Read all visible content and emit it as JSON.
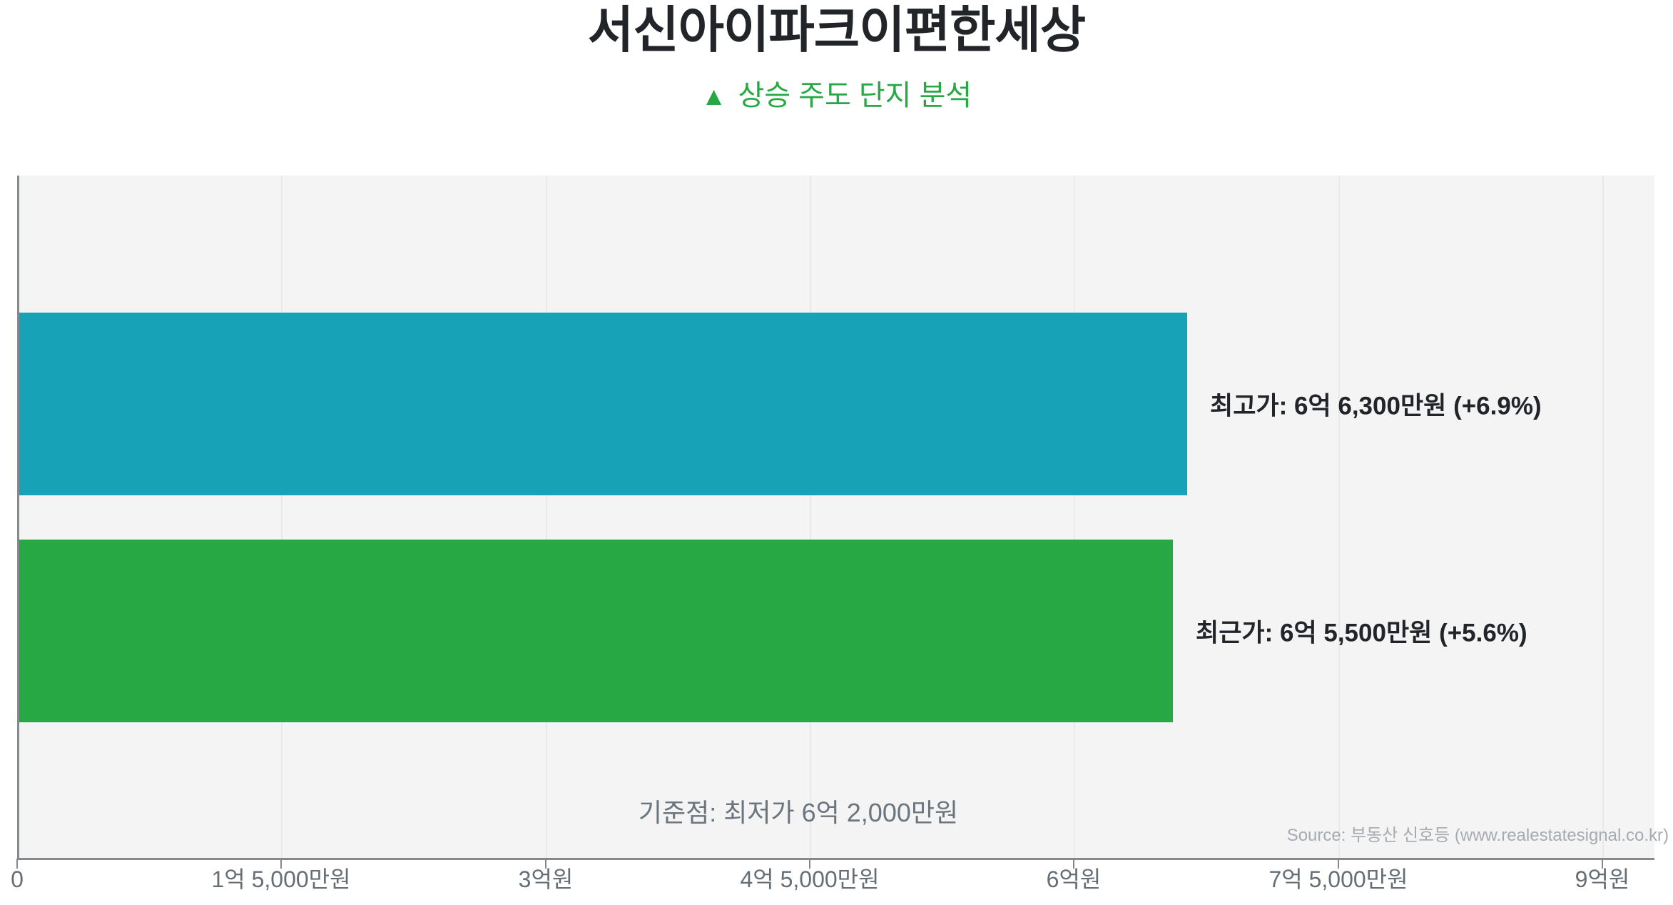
{
  "title": "서신아이파크이편한세상",
  "subtitle": {
    "icon": "▲",
    "text": "상승 주도 단지 분석"
  },
  "annotation": "기준점: 최저가 6억 2,000만원",
  "source": "Source: 부동산 신호등 (www.realestatesignal.co.kr)",
  "colors": {
    "background": "#ffffff",
    "plot_background": "#f4f4f5",
    "bar_highest": "#18a2b8",
    "bar_recent": "#28a745",
    "accent_green": "#28a745",
    "title_text": "#212529",
    "bar_label_text": "#212529",
    "annotation_text": "#6c757d",
    "source_text": "#a6abb0",
    "axis_line": "#85888c",
    "tick_label": "#666e75",
    "gridline": "#e8e9ea"
  },
  "chart_data": {
    "type": "bar",
    "orientation": "horizontal",
    "title": "서신아이파크이편한세상",
    "subtitle": "▲ 상승 주도 단지 분석",
    "unit": "만원",
    "categories": [
      "최고가",
      "최근가"
    ],
    "series": [
      {
        "name": "최고가",
        "value": 66300,
        "value_label": "6억 6,300만원",
        "change": "+6.9%",
        "bar_label": "최고가: 6억 6,300만원 (+6.9%)",
        "color": "#18a2b8"
      },
      {
        "name": "최근가",
        "value": 65500,
        "value_label": "6억 5,500만원",
        "change": "+5.6%",
        "bar_label": "최근가: 6억 5,500만원 (+5.6%)",
        "color": "#28a745"
      }
    ],
    "baseline": {
      "name": "최저가",
      "value": 62000,
      "text": "기준점: 최저가 6억 2,000만원"
    },
    "x_axis": {
      "min": 0,
      "max": 90000,
      "ticks": [
        {
          "value": 0,
          "label": "0"
        },
        {
          "value": 15000,
          "label": "1억 5,000만원"
        },
        {
          "value": 30000,
          "label": "3억원"
        },
        {
          "value": 45000,
          "label": "4억 5,000만원"
        },
        {
          "value": 60000,
          "label": "6억원"
        },
        {
          "value": 75000,
          "label": "7억 5,000만원"
        },
        {
          "value": 90000,
          "label": "9억원"
        }
      ]
    },
    "grid": "vertical",
    "legend": false
  }
}
